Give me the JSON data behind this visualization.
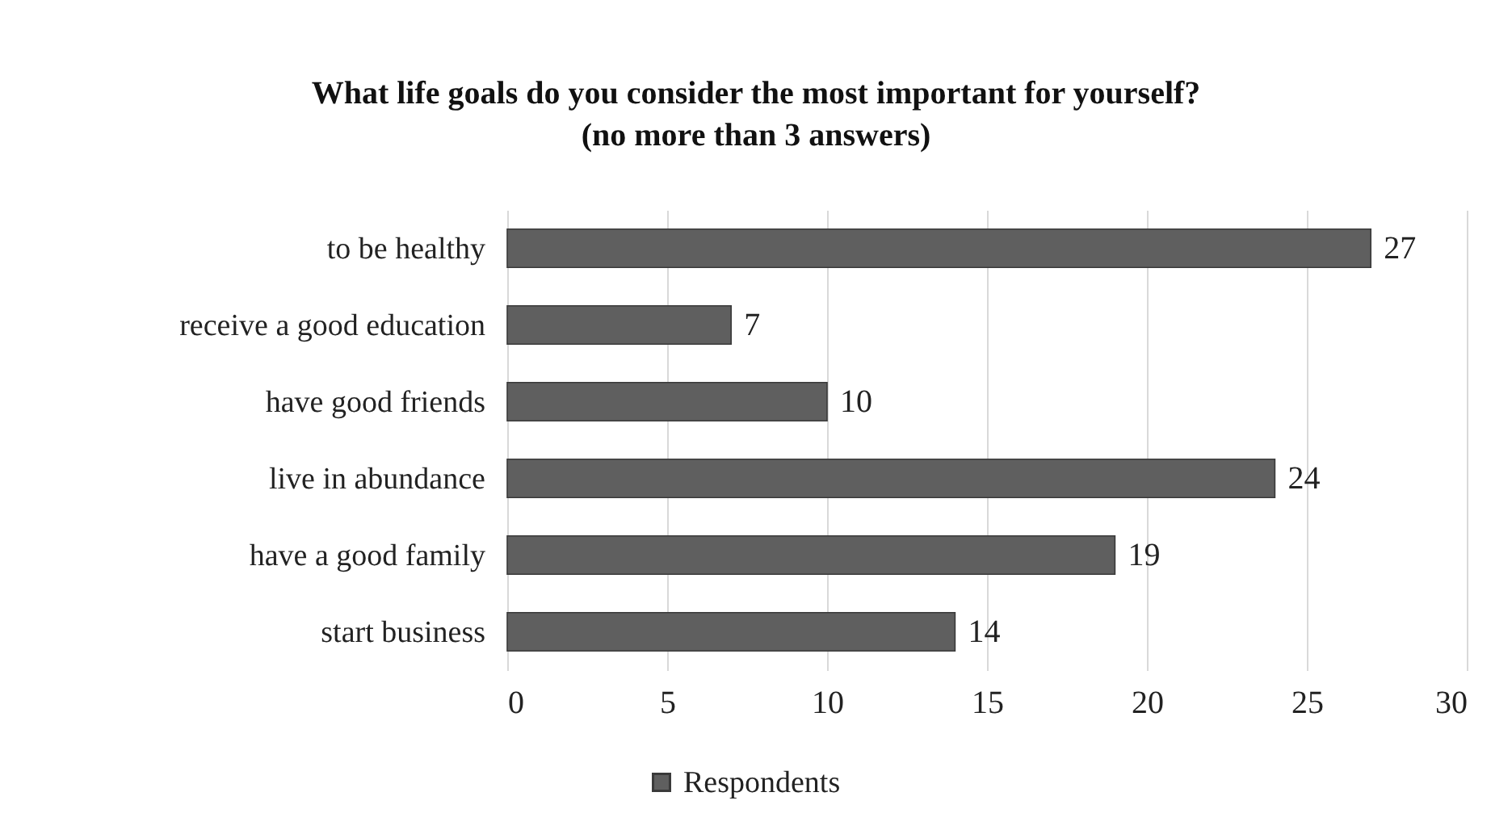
{
  "chart_data": {
    "type": "bar",
    "orientation": "horizontal",
    "title": "What life goals do you consider the most important for yourself?\n(no more than 3 answers)",
    "categories": [
      "to be healthy",
      "receive a good education",
      "have good friends",
      "live in abundance",
      "have a good family",
      "start business"
    ],
    "series": [
      {
        "name": "Respondents",
        "color": "#5f5f5f",
        "values": [
          27,
          7,
          10,
          24,
          19,
          14
        ]
      }
    ],
    "xlim": [
      0,
      30
    ],
    "xticks": [
      0,
      5,
      10,
      15,
      20,
      25,
      30
    ],
    "grid": "x",
    "legend": "bottom",
    "data_labels": true
  }
}
